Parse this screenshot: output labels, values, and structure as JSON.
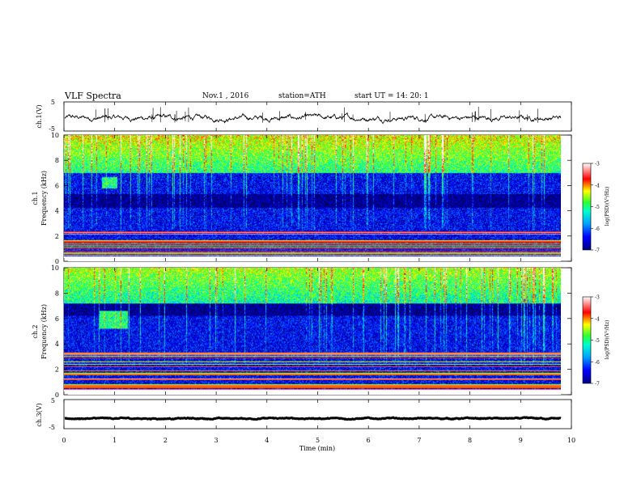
{
  "header": {
    "title": "VLF Spectra",
    "date": "Nov.1 , 2016",
    "station": "station=ATH",
    "start": "start UT = 14: 20: 1"
  },
  "chart_data": [
    {
      "type": "line",
      "title": "",
      "ylabel": "ch.1(V)",
      "ylim": [
        -5,
        5
      ],
      "yticks": [
        "5",
        "-5"
      ],
      "xlim": [
        0,
        10
      ],
      "series": [
        {
          "values_note": "waveform near -0.5 V with noise and sparse spikes",
          "level": -0.5
        }
      ],
      "grid": false
    },
    {
      "type": "heatmap",
      "title": "",
      "panel_label": "ch.1",
      "ylabel": "Frequency (kHz)",
      "ylim": [
        0,
        10
      ],
      "yticks": [
        "0",
        "2",
        "4",
        "6",
        "8",
        "10"
      ],
      "xlim": [
        0,
        10
      ],
      "colorbar": {
        "label": "log(PSD)(V²/Hz)",
        "min": -7,
        "max": -3,
        "ticks": [
          "-3",
          "-4",
          "-5",
          "-6",
          "-7"
        ]
      },
      "features": [
        {
          "kind": "intense noise",
          "freq_kHz": [
            7,
            10
          ],
          "level": -5
        },
        {
          "kind": "quiet band",
          "freq_kHz": [
            4.2,
            5.3
          ],
          "level": -6.8
        },
        {
          "kind": "tones",
          "freq_kHz": [
            0.2,
            2.6
          ],
          "level": -4.5
        },
        {
          "kind": "signal blob",
          "time_min": [
            0.75,
            1.05
          ],
          "freq_kHz": [
            5.8,
            6.7
          ],
          "level": -5
        }
      ]
    },
    {
      "type": "heatmap",
      "title": "",
      "panel_label": "ch.2",
      "ylabel": "Frequency (kHz)",
      "ylim": [
        0,
        10
      ],
      "yticks": [
        "0",
        "2",
        "4",
        "6",
        "8",
        "10"
      ],
      "xlim": [
        0,
        10
      ],
      "colorbar": {
        "label": "log(PSD)(V²/Hz)",
        "min": -7,
        "max": -3,
        "ticks": [
          "-3",
          "-4",
          "-5",
          "-6",
          "-7"
        ]
      },
      "features": [
        {
          "kind": "intense noise",
          "freq_kHz": [
            7,
            10
          ],
          "level": -5.2
        },
        {
          "kind": "quiet band",
          "freq_kHz": [
            6.2,
            7.2
          ],
          "level": -6.8
        },
        {
          "kind": "tones",
          "freq_kHz": [
            0.2,
            3.5
          ],
          "level": -4.8
        },
        {
          "kind": "signal blob",
          "time_min": [
            0.7,
            1.25
          ],
          "freq_kHz": [
            5.2,
            6.6
          ],
          "level": -5
        }
      ]
    },
    {
      "type": "line",
      "title": "",
      "ylabel": "ch.3(V)",
      "ylim": [
        -5,
        5
      ],
      "yticks": [
        "5",
        "-5"
      ],
      "xlim": [
        0,
        10
      ],
      "xlabel": "Time (min)",
      "xticks": [
        "0",
        "1",
        "2",
        "3",
        "4",
        "5",
        "6",
        "7",
        "8",
        "9",
        "10"
      ],
      "series": [
        {
          "values_note": "near-constant trace",
          "level": -1.5
        }
      ],
      "grid": false
    }
  ]
}
